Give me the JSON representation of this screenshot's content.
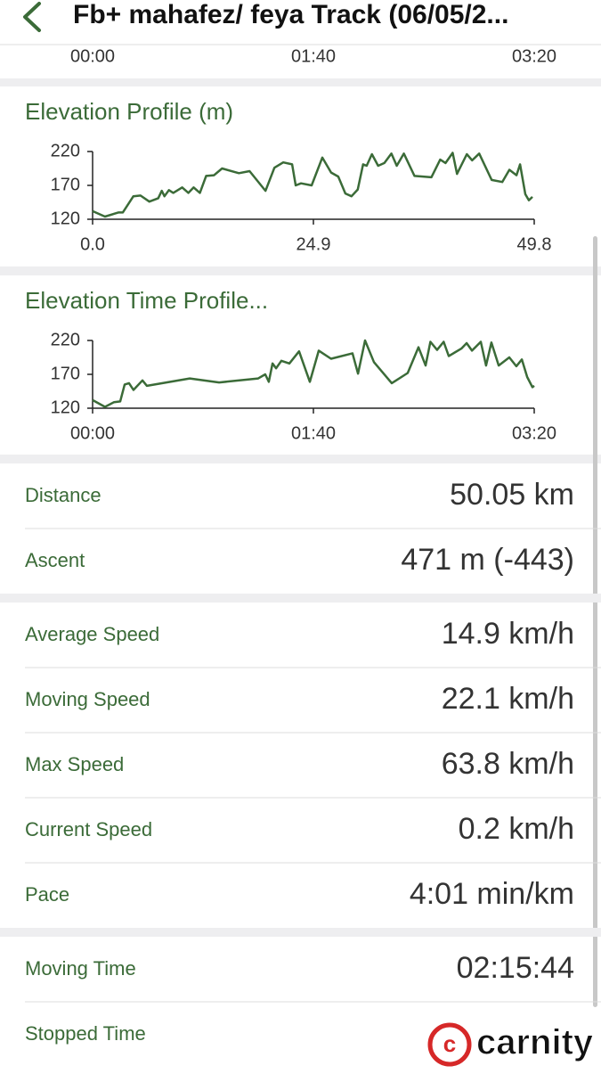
{
  "header": {
    "title": "Fb+ mahafez/ feya Track (06/05/2..."
  },
  "top_axis": {
    "labels": [
      "00:00",
      "01:40",
      "03:20"
    ]
  },
  "chart_data": [
    {
      "type": "line",
      "title": "Elevation Profile (m)",
      "color": "#3b6b38",
      "x": [
        0,
        1.4,
        2.9,
        3.4,
        4.6,
        5.4,
        6.4,
        7.4,
        7.8,
        8.1,
        8.6,
        9.1,
        10.1,
        10.8,
        11.4,
        12.1,
        12.8,
        13.7,
        14.6,
        16.5,
        17.7,
        19.5,
        20.5,
        21.5,
        22.5,
        22.9,
        23.5,
        24.7,
        25.9,
        26.9,
        27.7,
        28.5,
        29.2,
        29.9,
        30.5,
        30.9,
        31.5,
        32.2,
        32.9,
        33.7,
        34.3,
        35.1,
        36.3,
        38.2,
        39.2,
        39.8,
        40.6,
        41.1,
        42.2,
        42.8,
        43.6,
        45.0,
        46.2,
        47.0,
        47.8,
        48.2,
        48.8,
        49.2,
        49.6
      ],
      "values": [
        132,
        124,
        130,
        130,
        154,
        155,
        146,
        151,
        162,
        154,
        163,
        159,
        167,
        159,
        167,
        159,
        184,
        185,
        195,
        188,
        191,
        162,
        196,
        204,
        201,
        170,
        173,
        170,
        211,
        189,
        183,
        158,
        154,
        164,
        201,
        199,
        216,
        199,
        203,
        217,
        199,
        217,
        184,
        182,
        208,
        203,
        218,
        187,
        216,
        207,
        217,
        178,
        175,
        193,
        185,
        201,
        157,
        148,
        153
      ],
      "xlim": [
        0,
        49.8
      ],
      "ylim": [
        120,
        220
      ],
      "xticks": [
        {
          "value": 0,
          "label": "0.0"
        },
        24.9,
        49.8
      ],
      "yticks": [
        120,
        170,
        220
      ]
    },
    {
      "type": "line",
      "title": "Elevation Time Profile...",
      "color": "#3b6b38",
      "x": [
        0,
        5.6,
        9.7,
        12.5,
        14.5,
        16.5,
        18.5,
        22.6,
        24.6,
        44,
        57.3,
        75,
        78.2,
        79.8,
        81.5,
        83.1,
        85.5,
        89.1,
        93.5,
        98.4,
        102.4,
        108,
        117.7,
        120.2,
        123.4,
        127.4,
        135.5,
        142.7,
        147.6,
        150.8,
        153,
        156,
        159,
        161.3,
        167,
        169.4,
        171.8,
        175.8,
        178.2,
        180.6,
        183.9,
        188.7,
        191.9,
        194.4,
        196.8,
        199.2,
        200
      ],
      "values": [
        132,
        122,
        129,
        130,
        155,
        157,
        147,
        161,
        153,
        164,
        158,
        164,
        170,
        159,
        186,
        179,
        190,
        186,
        204,
        159,
        205,
        193,
        201,
        171,
        220,
        188,
        157,
        172,
        210,
        183,
        218,
        206,
        218,
        197,
        208,
        216,
        205,
        218,
        183,
        217,
        183,
        195,
        182,
        192,
        166,
        151,
        153
      ],
      "xlim": [
        0,
        200
      ],
      "ylim": [
        120,
        220
      ],
      "xticks": [
        {
          "value": 0,
          "label": "00:00"
        },
        {
          "value": 100,
          "label": "01:40"
        },
        {
          "value": 200,
          "label": "03:20"
        }
      ],
      "yticks": [
        120,
        170,
        220
      ]
    }
  ],
  "stats": [
    [
      [
        "Distance",
        "50.05 km"
      ],
      [
        "Ascent",
        "471 m (-443)"
      ]
    ],
    [
      [
        "Average Speed",
        "14.9 km/h"
      ],
      [
        "Moving Speed",
        "22.1 km/h"
      ],
      [
        "Max Speed",
        "63.8 km/h"
      ],
      [
        "Current Speed",
        "0.2 km/h"
      ],
      [
        "Pace",
        "4:01 min/km"
      ]
    ],
    [
      [
        "Moving Time",
        "02:15:44"
      ],
      [
        "Stopped Time"
      ]
    ]
  ],
  "watermark": "carnity"
}
